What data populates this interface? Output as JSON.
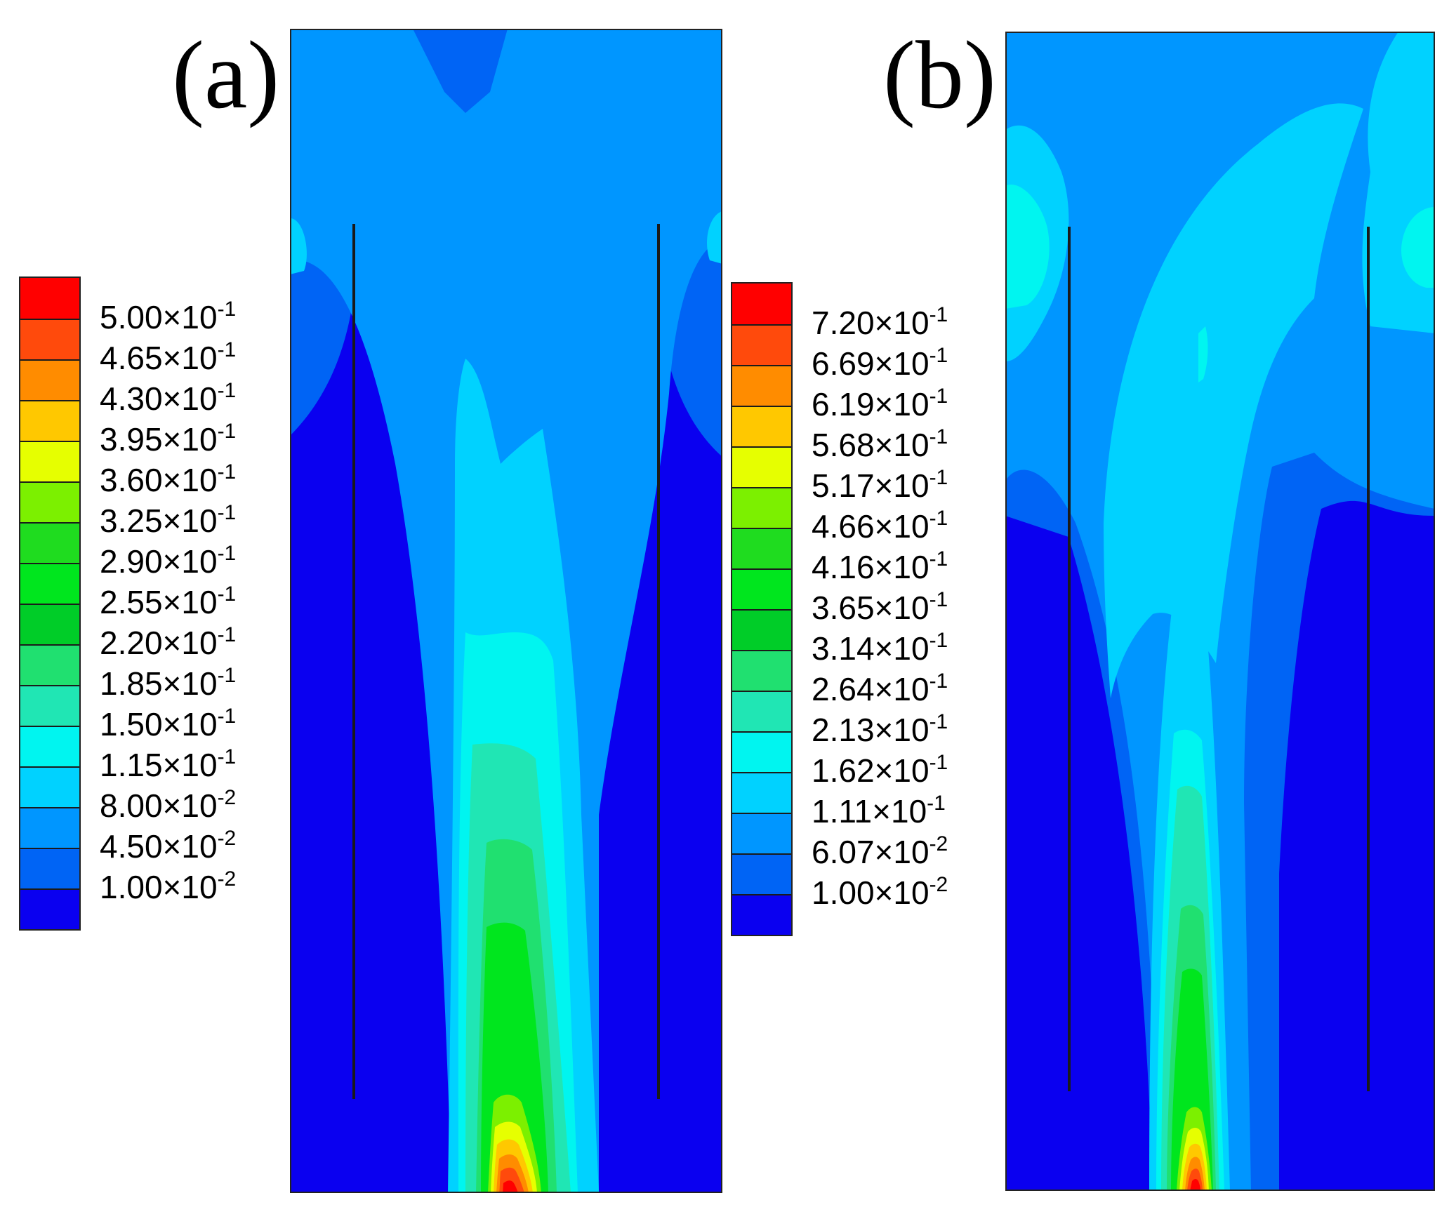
{
  "panels": [
    {
      "label": "(a)",
      "legend": {
        "colors": [
          "#ff0000",
          "#ff4a0c",
          "#ff8c00",
          "#ffc800",
          "#e6ff00",
          "#7cf000",
          "#1fdc1f",
          "#00e61e",
          "#00cd28",
          "#20e070",
          "#20e6b4",
          "#00f5f0",
          "#00d2ff",
          "#0096ff",
          "#0064f5",
          "#0a00f0"
        ],
        "levels": [
          {
            "m": "5.00",
            "e": "-1"
          },
          {
            "m": "4.65",
            "e": "-1"
          },
          {
            "m": "4.30",
            "e": "-1"
          },
          {
            "m": "3.95",
            "e": "-1"
          },
          {
            "m": "3.60",
            "e": "-1"
          },
          {
            "m": "3.25",
            "e": "-1"
          },
          {
            "m": "2.90",
            "e": "-1"
          },
          {
            "m": "2.55",
            "e": "-1"
          },
          {
            "m": "2.20",
            "e": "-1"
          },
          {
            "m": "1.85",
            "e": "-1"
          },
          {
            "m": "1.50",
            "e": "-1"
          },
          {
            "m": "1.15",
            "e": "-1"
          },
          {
            "m": "8.00",
            "e": "-2"
          },
          {
            "m": "4.50",
            "e": "-2"
          },
          {
            "m": "1.00",
            "e": "-2"
          }
        ]
      }
    },
    {
      "label": "(b)",
      "legend": {
        "colors": [
          "#ff0000",
          "#ff4a0c",
          "#ff8c00",
          "#ffc800",
          "#e6ff00",
          "#7cf000",
          "#1fdc1f",
          "#00e61e",
          "#00cd28",
          "#20e070",
          "#20e6b4",
          "#00f5f0",
          "#00d2ff",
          "#0096ff",
          "#0064f5",
          "#0a00f0"
        ],
        "levels": [
          {
            "m": "7.20",
            "e": "-1"
          },
          {
            "m": "6.69",
            "e": "-1"
          },
          {
            "m": "6.19",
            "e": "-1"
          },
          {
            "m": "5.68",
            "e": "-1"
          },
          {
            "m": "5.17",
            "e": "-1"
          },
          {
            "m": "4.66",
            "e": "-1"
          },
          {
            "m": "4.16",
            "e": "-1"
          },
          {
            "m": "3.65",
            "e": "-1"
          },
          {
            "m": "3.14",
            "e": "-1"
          },
          {
            "m": "2.64",
            "e": "-1"
          },
          {
            "m": "2.13",
            "e": "-1"
          },
          {
            "m": "1.62",
            "e": "-1"
          },
          {
            "m": "1.11",
            "e": "-1"
          },
          {
            "m": "6.07",
            "e": "-2"
          },
          {
            "m": "1.00",
            "e": "-2"
          }
        ]
      }
    }
  ],
  "times_sign": "×10"
}
